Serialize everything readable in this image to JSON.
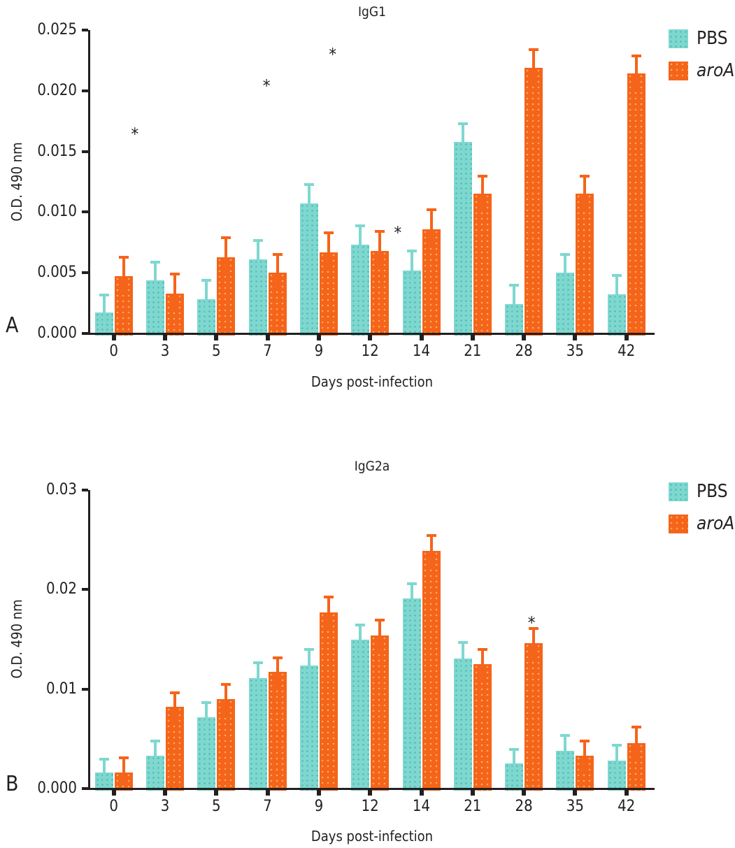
{
  "figure": {
    "panels": [
      {
        "letter": "A",
        "title": "IgG1",
        "x_label": "Days post-infection",
        "y_label": "O.D. 490 nm"
      },
      {
        "letter": "B",
        "title": "IgG2a",
        "x_label": "Days post-infection",
        "y_label": "O.D. 490 nm"
      }
    ],
    "colors": {
      "pbs": "#7ed8cf",
      "aroa": "#f5641b",
      "axis": "#231f20"
    }
  },
  "chart_data": [
    {
      "type": "bar",
      "title": "IgG1",
      "xlabel": "Days post-infection",
      "ylabel": "O.D. 490 nm",
      "categories": [
        "0",
        "3",
        "5",
        "7",
        "9",
        "12",
        "14",
        "21",
        "28",
        "35",
        "42"
      ],
      "series": [
        {
          "name": "PBS",
          "color": "#7ed8cf",
          "values": [
            0.0017,
            0.0044,
            0.0028,
            0.0061,
            0.0107,
            0.0073,
            0.0052,
            0.0158,
            0.0024,
            0.005,
            0.0032
          ],
          "errors": [
            0.0016,
            0.0016,
            0.0017,
            0.0017,
            0.0017,
            0.0017,
            0.0017,
            0.0016,
            0.0017,
            0.0016,
            0.0017
          ]
        },
        {
          "name": "aroA",
          "color": "#f5641b",
          "values": [
            0.0047,
            0.0033,
            0.0063,
            0.005,
            0.0067,
            0.0068,
            0.0086,
            0.0115,
            0.0219,
            0.0115,
            0.0214
          ],
          "errors": [
            0.0017,
            0.0017,
            0.0017,
            0.0016,
            0.0017,
            0.0017,
            0.0017,
            0.0016,
            0.0016,
            0.0016,
            0.0016
          ]
        }
      ],
      "ylim": [
        0,
        0.025
      ],
      "yticks": [
        {
          "value": 0.0,
          "label": "0.000"
        },
        {
          "value": 0.005,
          "label": "0.005"
        },
        {
          "value": 0.01,
          "label": "0.010"
        },
        {
          "value": 0.015,
          "label": "0.015"
        },
        {
          "value": 0.02,
          "label": "0.020"
        },
        {
          "value": 0.025,
          "label": "0.025"
        }
      ],
      "grid": false,
      "legend_position": "top-right",
      "annotations": [
        {
          "x_index": 0.41,
          "value": 0.0167,
          "symbol": "*"
        },
        {
          "x_index": 2.98,
          "value": 0.0207,
          "symbol": "*"
        },
        {
          "x_index": 4.27,
          "value": 0.0233,
          "symbol": "*"
        },
        {
          "x_index": 5.54,
          "value": 0.0086,
          "symbol": "*"
        }
      ]
    },
    {
      "type": "bar",
      "title": "IgG2a",
      "xlabel": "Days post-infection",
      "ylabel": "O.D. 490 nm",
      "categories": [
        "0",
        "3",
        "5",
        "7",
        "9",
        "12",
        "14",
        "21",
        "28",
        "35",
        "42"
      ],
      "series": [
        {
          "name": "PBS",
          "color": "#7ed8cf",
          "values": [
            0.0016,
            0.0033,
            0.0072,
            0.0111,
            0.0124,
            0.015,
            0.0191,
            0.0131,
            0.0025,
            0.0038,
            0.0028
          ],
          "errors": [
            0.0015,
            0.0016,
            0.0016,
            0.0017,
            0.0017,
            0.0016,
            0.0016,
            0.0017,
            0.0016,
            0.0017,
            0.0017
          ]
        },
        {
          "name": "aroA",
          "color": "#f5641b",
          "values": [
            0.0016,
            0.0082,
            0.009,
            0.0117,
            0.0177,
            0.0154,
            0.0239,
            0.0125,
            0.0146,
            0.0033,
            0.0046
          ],
          "errors": [
            0.0016,
            0.0016,
            0.0016,
            0.0016,
            0.0017,
            0.0017,
            0.0017,
            0.0016,
            0.0016,
            0.0016,
            0.0017
          ]
        }
      ],
      "ylim": [
        0,
        0.03
      ],
      "yticks": [
        {
          "value": 0.0,
          "label": "0.000"
        },
        {
          "value": 0.01,
          "label": "0.01"
        },
        {
          "value": 0.02,
          "label": "0.02"
        },
        {
          "value": 0.03,
          "label": "0.03"
        }
      ],
      "grid": false,
      "legend_position": "top-right",
      "annotations": [
        {
          "x_index": 8.15,
          "value": 0.017,
          "symbol": "*"
        }
      ]
    }
  ]
}
